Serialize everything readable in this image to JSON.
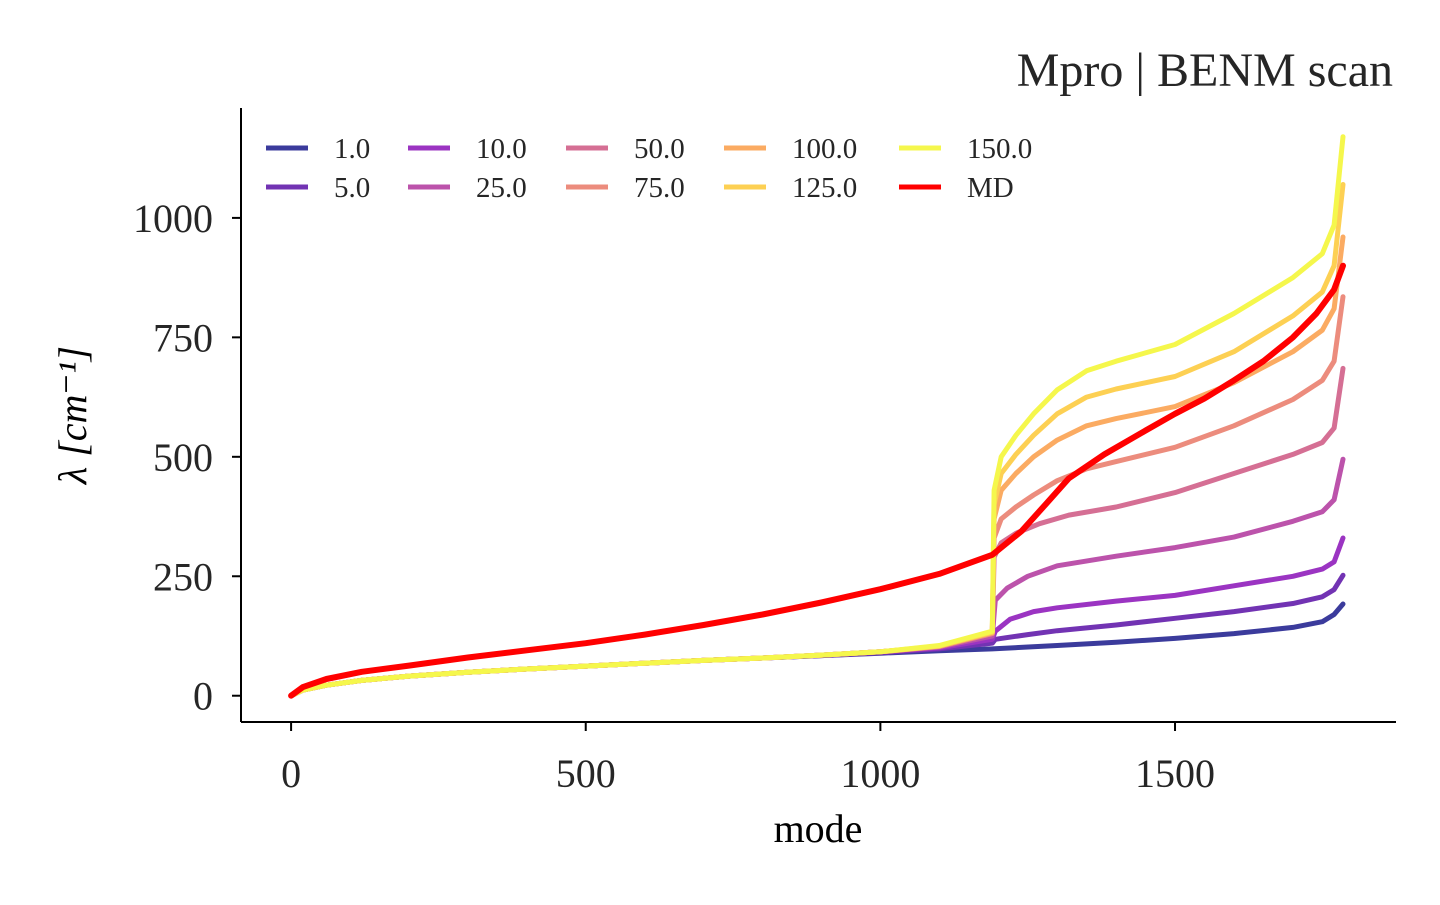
{
  "chart_data": {
    "type": "line",
    "title": "Mpro | BENM scan",
    "xlabel": "mode",
    "ylabel": "λ [cm⁻¹]",
    "xlim": [
      -85,
      1875
    ],
    "ylim": [
      -55,
      1230
    ],
    "xticks": [
      0,
      500,
      1000,
      1500
    ],
    "yticks": [
      0,
      250,
      500,
      750,
      1000
    ],
    "grid": false,
    "legend_position": "top-left",
    "colors": {
      "1.0": "#3b3b9c",
      "5.0": "#7233b3",
      "10.0": "#9b34c2",
      "25.0": "#bc53ab",
      "50.0": "#d56f94",
      "75.0": "#ec8c7d",
      "100.0": "#fbab62",
      "125.0": "#fdd053",
      "150.0": "#f5f74c",
      "MD": "#ff0000"
    },
    "series": [
      {
        "name": "1.0",
        "x": [
          0,
          20,
          60,
          120,
          200,
          300,
          400,
          500,
          600,
          700,
          800,
          900,
          1000,
          1100,
          1190,
          1300,
          1400,
          1500,
          1600,
          1700,
          1750,
          1770,
          1785
        ],
        "y": [
          0,
          12,
          22,
          32,
          41,
          49,
          56,
          62,
          68,
          74,
          79,
          84,
          89,
          94,
          98,
          105,
          112,
          120,
          130,
          143,
          155,
          170,
          192
        ]
      },
      {
        "name": "5.0",
        "x": [
          0,
          20,
          60,
          120,
          200,
          300,
          400,
          500,
          600,
          700,
          800,
          900,
          1000,
          1100,
          1190,
          1195,
          1250,
          1300,
          1400,
          1500,
          1600,
          1700,
          1750,
          1770,
          1785
        ],
        "y": [
          0,
          12,
          22,
          32,
          41,
          49,
          56,
          62,
          68,
          74,
          79,
          84,
          90,
          98,
          110,
          118,
          128,
          136,
          148,
          162,
          176,
          193,
          207,
          222,
          252
        ]
      },
      {
        "name": "10.0",
        "x": [
          0,
          20,
          60,
          120,
          200,
          300,
          400,
          500,
          600,
          700,
          800,
          900,
          1000,
          1100,
          1190,
          1195,
          1220,
          1260,
          1300,
          1400,
          1500,
          1600,
          1700,
          1750,
          1770,
          1785
        ],
        "y": [
          0,
          12,
          22,
          32,
          41,
          49,
          56,
          62,
          68,
          74,
          79,
          85,
          92,
          100,
          118,
          135,
          160,
          176,
          184,
          198,
          210,
          230,
          250,
          265,
          280,
          330
        ]
      },
      {
        "name": "25.0",
        "x": [
          0,
          20,
          60,
          120,
          200,
          300,
          400,
          500,
          600,
          700,
          800,
          900,
          1000,
          1100,
          1190,
          1195,
          1215,
          1250,
          1300,
          1400,
          1500,
          1600,
          1700,
          1750,
          1770,
          1785
        ],
        "y": [
          0,
          12,
          22,
          32,
          41,
          49,
          56,
          62,
          68,
          74,
          79,
          85,
          92,
          102,
          125,
          200,
          225,
          250,
          272,
          292,
          310,
          332,
          365,
          385,
          410,
          495
        ]
      },
      {
        "name": "50.0",
        "x": [
          0,
          20,
          60,
          120,
          200,
          300,
          400,
          500,
          600,
          700,
          800,
          900,
          1000,
          1100,
          1190,
          1193,
          1205,
          1230,
          1270,
          1320,
          1400,
          1500,
          1600,
          1700,
          1750,
          1770,
          1785
        ],
        "y": [
          0,
          12,
          22,
          32,
          41,
          49,
          56,
          62,
          68,
          74,
          79,
          85,
          92,
          103,
          130,
          290,
          320,
          340,
          360,
          378,
          395,
          425,
          465,
          505,
          530,
          560,
          685
        ]
      },
      {
        "name": "75.0",
        "x": [
          0,
          20,
          60,
          120,
          200,
          300,
          400,
          500,
          600,
          700,
          800,
          900,
          1000,
          1100,
          1190,
          1193,
          1205,
          1230,
          1260,
          1300,
          1350,
          1400,
          1500,
          1600,
          1700,
          1750,
          1770,
          1785
        ],
        "y": [
          0,
          12,
          22,
          32,
          41,
          49,
          56,
          62,
          68,
          74,
          79,
          85,
          92,
          103,
          130,
          330,
          370,
          395,
          420,
          450,
          475,
          490,
          520,
          565,
          620,
          660,
          700,
          835
        ]
      },
      {
        "name": "100.0",
        "x": [
          0,
          20,
          60,
          120,
          200,
          300,
          400,
          500,
          600,
          700,
          800,
          900,
          1000,
          1100,
          1190,
          1193,
          1205,
          1230,
          1260,
          1300,
          1350,
          1400,
          1500,
          1600,
          1700,
          1750,
          1770,
          1785
        ],
        "y": [
          0,
          12,
          22,
          32,
          41,
          49,
          56,
          62,
          68,
          74,
          79,
          85,
          92,
          104,
          132,
          370,
          430,
          465,
          500,
          535,
          565,
          580,
          605,
          655,
          720,
          765,
          810,
          960
        ]
      },
      {
        "name": "125.0",
        "x": [
          0,
          20,
          60,
          120,
          200,
          300,
          400,
          500,
          600,
          700,
          800,
          900,
          1000,
          1100,
          1190,
          1193,
          1205,
          1230,
          1260,
          1300,
          1350,
          1400,
          1500,
          1600,
          1700,
          1750,
          1770,
          1785
        ],
        "y": [
          0,
          12,
          22,
          32,
          41,
          49,
          56,
          62,
          68,
          74,
          79,
          85,
          92,
          104,
          133,
          400,
          465,
          505,
          545,
          590,
          625,
          642,
          668,
          720,
          795,
          845,
          900,
          1070
        ]
      },
      {
        "name": "150.0",
        "x": [
          0,
          20,
          60,
          120,
          200,
          300,
          400,
          500,
          600,
          700,
          800,
          900,
          1000,
          1100,
          1190,
          1193,
          1205,
          1230,
          1260,
          1300,
          1350,
          1400,
          1500,
          1600,
          1700,
          1750,
          1770,
          1785
        ],
        "y": [
          0,
          12,
          22,
          32,
          41,
          49,
          56,
          62,
          68,
          74,
          79,
          85,
          92,
          105,
          135,
          430,
          500,
          545,
          590,
          640,
          680,
          700,
          735,
          800,
          875,
          925,
          985,
          1170
        ]
      },
      {
        "name": "MD",
        "x": [
          0,
          20,
          60,
          120,
          200,
          300,
          400,
          500,
          600,
          700,
          800,
          900,
          1000,
          1100,
          1190,
          1240,
          1280,
          1320,
          1380,
          1450,
          1500,
          1550,
          1600,
          1650,
          1700,
          1740,
          1770,
          1785
        ],
        "y": [
          0,
          18,
          35,
          50,
          63,
          80,
          95,
          110,
          128,
          148,
          170,
          195,
          223,
          255,
          295,
          345,
          400,
          455,
          505,
          555,
          590,
          622,
          660,
          700,
          750,
          800,
          850,
          900
        ]
      }
    ]
  }
}
